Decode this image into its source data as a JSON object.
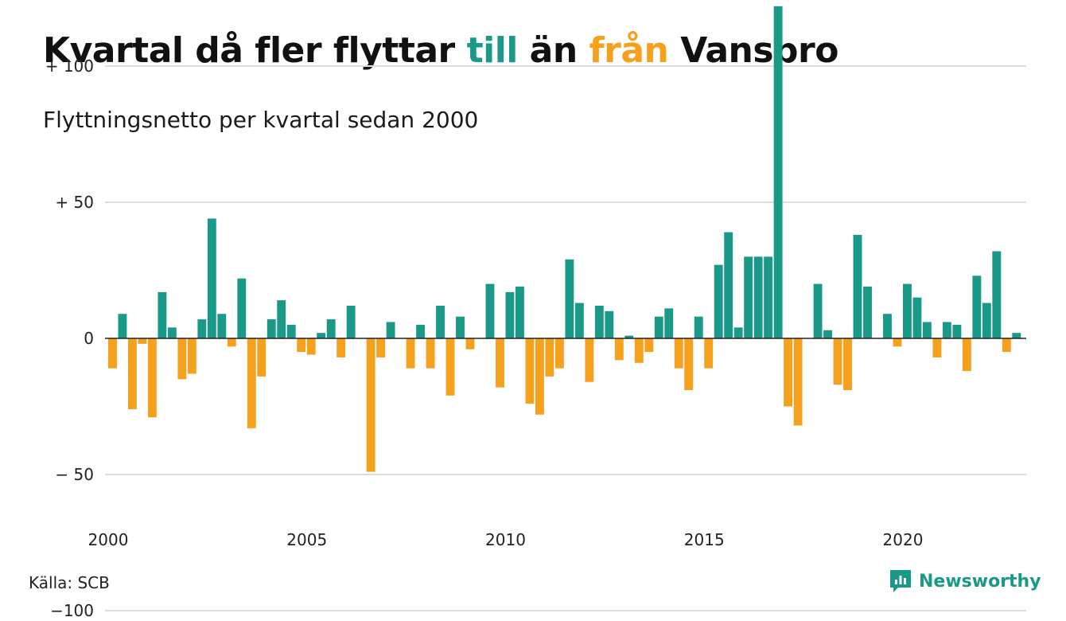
{
  "header": {
    "title_part1": "Kvartal då fler flyttar ",
    "title_till": "till",
    "title_mid": " än ",
    "title_fran": "från",
    "title_end": " Vansbro",
    "subtitle": "Flyttningsnetto per kvartal sedan 2000"
  },
  "colors": {
    "positive": "#1a9988",
    "negative": "#f5a11d",
    "gridline": "#dddddd",
    "zeroline": "#222222",
    "text": "#111111",
    "brand": "#1a9988"
  },
  "chart_data": {
    "type": "bar",
    "title": "Kvartal då fler flyttar till än från Vansbro",
    "subtitle": "Flyttningsnetto per kvartal sedan 2000",
    "x_start": 2000,
    "periods_per_year": 4,
    "xlim": [
      2000,
      2023.25
    ],
    "ylim": [
      -120,
      130
    ],
    "grid": true,
    "x_ticks": [
      2000,
      2005,
      2010,
      2015,
      2020
    ],
    "y_ticks": [
      {
        "value": 100,
        "label": "+ 100"
      },
      {
        "value": 50,
        "label": "+  50"
      },
      {
        "value": 0,
        "label": "0"
      },
      {
        "value": -50,
        "label": "− 50"
      },
      {
        "value": -100,
        "label": "−100"
      }
    ],
    "values": [
      -11,
      9,
      -26,
      -2,
      -29,
      17,
      4,
      -15,
      -13,
      7,
      44,
      9,
      -3,
      22,
      -33,
      -14,
      7,
      14,
      5,
      -5,
      -6,
      2,
      7,
      -7,
      12,
      0,
      -49,
      -7,
      6,
      0,
      -11,
      5,
      -11,
      12,
      -21,
      8,
      -4,
      0,
      20,
      -18,
      17,
      19,
      -24,
      -28,
      -14,
      -11,
      29,
      13,
      -16,
      12,
      10,
      -8,
      1,
      -9,
      -5,
      8,
      11,
      -11,
      -19,
      8,
      -11,
      27,
      39,
      4,
      30,
      30,
      30,
      122,
      -25,
      -32,
      0,
      20,
      3,
      -17,
      -19,
      38,
      19,
      0,
      9,
      -3,
      20,
      15,
      6,
      -7,
      6,
      5,
      -12,
      23,
      13,
      32,
      -5,
      2
    ]
  },
  "footer": {
    "source": "Källa: SCB",
    "brand": "Newsworthy"
  }
}
